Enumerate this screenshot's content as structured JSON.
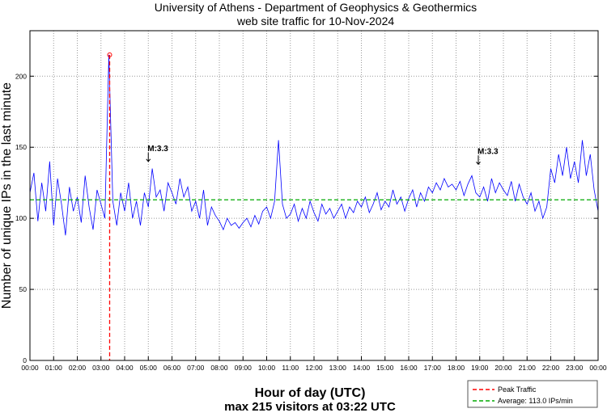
{
  "chart_data": {
    "type": "line",
    "title": "University of Athens - Department of Geophysics & Geothermics",
    "subtitle": "web site traffic for 10-Nov-2024",
    "xlabel": "Hour of day (UTC)",
    "xlabel_sub": "max 215 visitors at 03:22 UTC",
    "ylabel": "Number of unique IPs in the last minute",
    "xlim_hours": [
      0,
      24
    ],
    "ylim": [
      0,
      232
    ],
    "grid": true,
    "x_tick_labels": [
      "00:00",
      "01:00",
      "02:00",
      "03:00",
      "04:00",
      "05:00",
      "06:00",
      "07:00",
      "08:00",
      "09:00",
      "10:00",
      "11:00",
      "12:00",
      "13:00",
      "14:00",
      "15:00",
      "16:00",
      "17:00",
      "18:00",
      "19:00",
      "20:00",
      "21:00",
      "22:00",
      "23:00",
      "00:00"
    ],
    "y_ticks": [
      0,
      50,
      100,
      150,
      200
    ],
    "sample_interval_minutes": 10,
    "series": [
      {
        "name": "traffic",
        "color": "#0000ff",
        "values": [
          118,
          132,
          98,
          125,
          105,
          140,
          95,
          128,
          110,
          88,
          122,
          105,
          115,
          97,
          130,
          108,
          92,
          120,
          110,
          100,
          215,
          112,
          95,
          118,
          105,
          125,
          100,
          112,
          95,
          118,
          108,
          135,
          115,
          120,
          105,
          125,
          118,
          110,
          128,
          115,
          122,
          105,
          112,
          100,
          120,
          95,
          108,
          102,
          98,
          92,
          100,
          95,
          97,
          93,
          97,
          100,
          94,
          102,
          96,
          105,
          108,
          100,
          112,
          155,
          110,
          100,
          103,
          110,
          98,
          107,
          100,
          112,
          104,
          98,
          110,
          103,
          107,
          100,
          105,
          110,
          100,
          108,
          104,
          112,
          108,
          115,
          104,
          110,
          118,
          106,
          112,
          108,
          120,
          110,
          115,
          105,
          114,
          120,
          108,
          118,
          112,
          122,
          118,
          125,
          120,
          128,
          122,
          124,
          120,
          126,
          116,
          124,
          130,
          118,
          115,
          122,
          112,
          128,
          118,
          125,
          120,
          116,
          126,
          112,
          124,
          115,
          110,
          118,
          105,
          112,
          100,
          108,
          135,
          125,
          145,
          130,
          150,
          128,
          140,
          125,
          155,
          130,
          145,
          120,
          105
        ]
      }
    ],
    "peak": {
      "time_hours": 3.367,
      "value": 215,
      "color": "#ff0000"
    },
    "average": {
      "value": 113.0,
      "color": "#00aa00"
    },
    "annotations": [
      {
        "text": "M:3.3",
        "time_hours": 5.0,
        "value": 140
      },
      {
        "text": "M:3.3",
        "time_hours": 18.94,
        "value": 138
      }
    ],
    "legend": {
      "placement": "bottom-right",
      "entries": [
        "Peak Traffic",
        "Average: 113.0 IPs/min"
      ]
    }
  }
}
